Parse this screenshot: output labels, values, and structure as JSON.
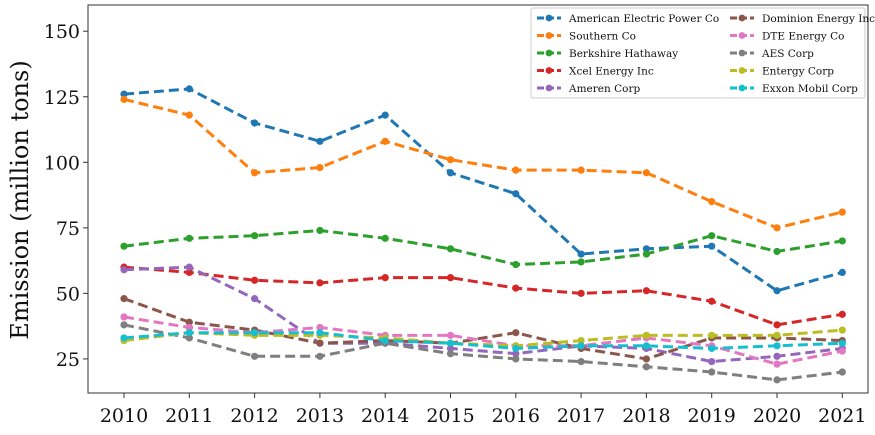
{
  "chart_data": {
    "type": "line",
    "title": "",
    "xlabel": "",
    "ylabel": "Emission (million tons)",
    "x": [
      2010,
      2011,
      2012,
      2013,
      2014,
      2015,
      2016,
      2017,
      2018,
      2019,
      2020,
      2021
    ],
    "x_ticks": [
      "2010",
      "2011",
      "2012",
      "2013",
      "2014",
      "2015",
      "2016",
      "2017",
      "2018",
      "2019",
      "2020",
      "2021"
    ],
    "y_ticks": [
      "25",
      "50",
      "75",
      "100",
      "125",
      "150"
    ],
    "ylim": [
      12,
      160
    ],
    "grid": false,
    "legend_position": "top-right",
    "line_style": "dashed",
    "series": [
      {
        "name": "American Electric Power Co",
        "color": "#1f77b4",
        "values": [
          126,
          128,
          115,
          108,
          118,
          96,
          88,
          65,
          67,
          68,
          51,
          58
        ]
      },
      {
        "name": "Southern Co",
        "color": "#ff7f0e",
        "values": [
          124,
          118,
          96,
          98,
          108,
          101,
          97,
          97,
          96,
          85,
          75,
          81
        ]
      },
      {
        "name": "Berkshire Hathaway",
        "color": "#2ca02c",
        "values": [
          68,
          71,
          72,
          74,
          71,
          67,
          61,
          62,
          65,
          72,
          66,
          70
        ]
      },
      {
        "name": "Xcel Energy Inc",
        "color": "#d62728",
        "values": [
          60,
          58,
          55,
          54,
          56,
          56,
          52,
          50,
          51,
          47,
          38,
          42
        ]
      },
      {
        "name": "Ameren Corp",
        "color": "#9467bd",
        "values": [
          59,
          60,
          48,
          31,
          31,
          29,
          27,
          30,
          29,
          24,
          26,
          29
        ]
      },
      {
        "name": "Dominion Energy Inc",
        "color": "#8c564b",
        "values": [
          48,
          39,
          36,
          31,
          32,
          31,
          35,
          29,
          25,
          33,
          33,
          32
        ]
      },
      {
        "name": "DTE Energy Co",
        "color": "#e377c2",
        "values": [
          41,
          37,
          35,
          37,
          34,
          34,
          30,
          30,
          33,
          30,
          23,
          28
        ]
      },
      {
        "name": "AES Corp",
        "color": "#7f7f7f",
        "values": [
          38,
          33,
          26,
          26,
          31,
          27,
          25,
          24,
          22,
          20,
          17,
          20
        ]
      },
      {
        "name": "Entergy Corp",
        "color": "#bcbd22",
        "values": [
          32,
          35,
          34,
          34,
          33,
          31,
          30,
          32,
          34,
          34,
          34,
          36
        ]
      },
      {
        "name": "Exxon Mobil Corp",
        "color": "#17becf",
        "values": [
          33,
          35,
          35,
          35,
          32,
          31,
          29,
          30,
          30,
          29,
          30,
          31
        ]
      }
    ]
  }
}
